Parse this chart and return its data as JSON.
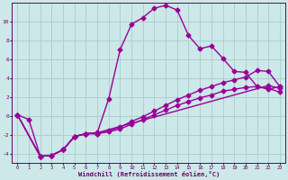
{
  "xlabel": "Windchill (Refroidissement éolien,°C)",
  "bg_color": "#cce8e8",
  "line_color": "#990099",
  "grid_color": "#aacccc",
  "axis_color": "#660066",
  "xlim": [
    -0.5,
    23.5
  ],
  "ylim": [
    -5.0,
    12.0
  ],
  "xticks": [
    0,
    1,
    2,
    3,
    4,
    5,
    6,
    7,
    8,
    9,
    10,
    11,
    12,
    13,
    14,
    15,
    16,
    17,
    18,
    19,
    20,
    21,
    22,
    23
  ],
  "yticks": [
    -4,
    -2,
    0,
    2,
    4,
    6,
    8,
    10
  ],
  "line1_x": [
    0,
    1,
    2,
    3,
    4,
    5,
    6,
    7,
    8,
    9,
    10,
    11,
    12,
    13,
    14,
    15,
    16,
    17,
    18,
    19,
    20,
    21,
    22,
    23
  ],
  "line1_y": [
    0.1,
    -0.4,
    -4.3,
    -4.2,
    -3.6,
    -2.2,
    -1.9,
    -1.8,
    1.8,
    7.0,
    9.7,
    10.4,
    11.4,
    11.7,
    11.2,
    8.5,
    7.1,
    7.4,
    6.1,
    4.7,
    4.6,
    3.1,
    2.8,
    3.1
  ],
  "line2_x": [
    0,
    2,
    3,
    4,
    5,
    6,
    7,
    22,
    23
  ],
  "line2_y": [
    0.1,
    -4.3,
    -4.2,
    -3.6,
    -2.2,
    -1.9,
    -1.8,
    3.2,
    2.9
  ],
  "line3_x": [
    0,
    2,
    3,
    4,
    5,
    6,
    7,
    8,
    9,
    10,
    11,
    12,
    13,
    14,
    15,
    16,
    17,
    18,
    19,
    20,
    21,
    22,
    23
  ],
  "line3_y": [
    0.1,
    -4.3,
    -4.2,
    -3.6,
    -2.2,
    -1.9,
    -1.9,
    -1.6,
    -1.2,
    -0.6,
    -0.1,
    0.5,
    1.1,
    1.7,
    2.2,
    2.7,
    3.1,
    3.5,
    3.8,
    4.1,
    4.8,
    4.7,
    3.1
  ],
  "line4_x": [
    0,
    2,
    3,
    4,
    5,
    6,
    7,
    8,
    9,
    10,
    11,
    12,
    13,
    14,
    15,
    16,
    17,
    18,
    19,
    20,
    21,
    22,
    23
  ],
  "line4_y": [
    0.1,
    -4.3,
    -4.2,
    -3.6,
    -2.2,
    -1.9,
    -1.9,
    -1.7,
    -1.4,
    -0.9,
    -0.4,
    0.1,
    0.6,
    1.1,
    1.5,
    1.9,
    2.2,
    2.6,
    2.8,
    3.0,
    3.1,
    2.9,
    2.5
  ],
  "marker": "D",
  "markersize": 2.5,
  "linewidth": 1.0
}
